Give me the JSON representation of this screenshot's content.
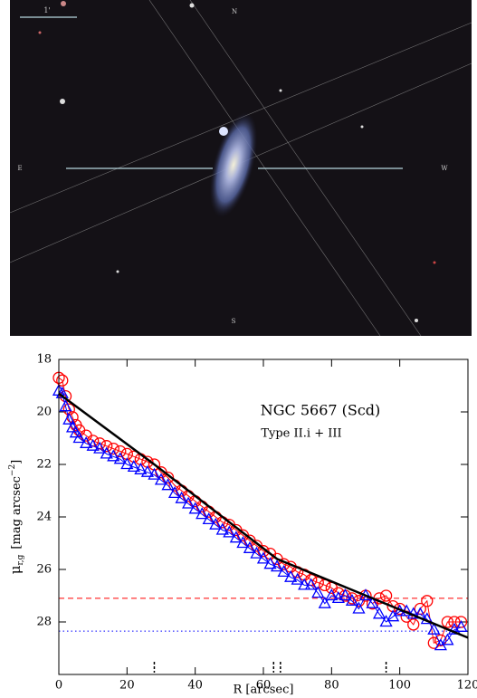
{
  "image": {
    "scale_label": "1'",
    "compass": [
      "N",
      "E",
      "W",
      "S"
    ]
  },
  "chart_data": {
    "type": "scatter",
    "title": "NGC 5667 (Scd)",
    "subtitle": "Type II.i + III",
    "x_label": "R [arcsec]",
    "y_label": {
      "symbol": "μ",
      "subscript": "r,g",
      "unit": "[mag arcsec",
      "exponent": "−2",
      "close": "]"
    },
    "xlim": [
      0,
      120
    ],
    "xticks": [
      0,
      20,
      40,
      60,
      80,
      100,
      120
    ],
    "ylim": [
      18,
      30
    ],
    "yticks": [
      18,
      20,
      22,
      24,
      26,
      28
    ],
    "y_inverted": true,
    "x": [
      0,
      1,
      2,
      3,
      4,
      5,
      6,
      8,
      10,
      12,
      14,
      16,
      18,
      20,
      22,
      24,
      26,
      28,
      30,
      32,
      34,
      36,
      38,
      40,
      42,
      44,
      46,
      48,
      50,
      52,
      54,
      56,
      58,
      60,
      62,
      64,
      66,
      68,
      70,
      72,
      74,
      76,
      78,
      80,
      82,
      84,
      86,
      88,
      90,
      92,
      94,
      96,
      98,
      100,
      102,
      104,
      106,
      108,
      110,
      112,
      114,
      116,
      118
    ],
    "series": [
      {
        "color": "#ff0000",
        "marker": "circle",
        "values": [
          18.7,
          18.8,
          19.4,
          19.9,
          20.2,
          20.5,
          20.7,
          20.9,
          21.1,
          21.2,
          21.3,
          21.4,
          21.5,
          21.6,
          21.7,
          21.8,
          21.9,
          22.0,
          22.3,
          22.5,
          22.8,
          23.0,
          23.2,
          23.4,
          23.6,
          23.8,
          24.0,
          24.2,
          24.3,
          24.5,
          24.7,
          24.9,
          25.1,
          25.3,
          25.4,
          25.6,
          25.8,
          25.9,
          26.1,
          26.2,
          26.4,
          26.5,
          26.6,
          26.7,
          26.9,
          27.0,
          27.1,
          27.2,
          27.0,
          27.3,
          27.1,
          27.0,
          27.4,
          27.5,
          27.8,
          28.1,
          27.5,
          27.2,
          28.8,
          28.7,
          28.0,
          28.0,
          28.0
        ]
      },
      {
        "color": "#0000ff",
        "marker": "triangle",
        "values": [
          19.2,
          19.3,
          19.8,
          20.3,
          20.6,
          20.8,
          21.0,
          21.2,
          21.3,
          21.4,
          21.6,
          21.7,
          21.8,
          22.0,
          22.1,
          22.2,
          22.3,
          22.4,
          22.6,
          22.8,
          23.1,
          23.3,
          23.5,
          23.7,
          23.9,
          24.1,
          24.3,
          24.5,
          24.6,
          24.8,
          25.0,
          25.2,
          25.4,
          25.6,
          25.8,
          25.9,
          26.1,
          26.3,
          26.4,
          26.6,
          26.6,
          26.9,
          27.3,
          27.0,
          27.1,
          27.0,
          27.2,
          27.5,
          27.0,
          27.3,
          27.7,
          28.0,
          27.8,
          27.6,
          27.6,
          27.7,
          27.7,
          27.9,
          28.3,
          28.9,
          28.7,
          28.3,
          28.2
        ]
      }
    ],
    "fit_line": {
      "color": "#000000",
      "x": [
        0,
        28,
        64,
        120
      ],
      "values": [
        19.3,
        22.0,
        25.6,
        28.6
      ]
    },
    "hlines": [
      {
        "value": 27.1,
        "color": "#ff0000",
        "style": "dashed"
      },
      {
        "value": 28.35,
        "color": "#0000ff",
        "style": "dotted"
      }
    ],
    "breaks": [
      28,
      63,
      65,
      96
    ]
  }
}
